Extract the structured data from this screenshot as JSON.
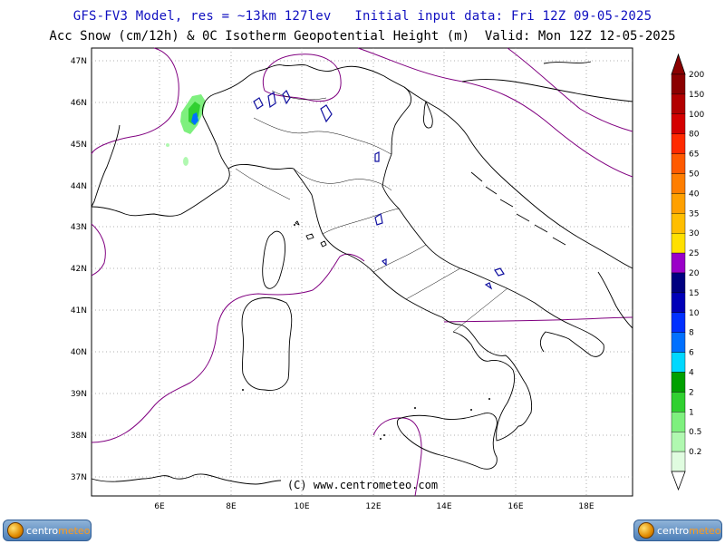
{
  "header": {
    "line1": "GFS-FV3 Model, res = ~13km 127lev   Initial input data: Fri 12Z 09-05-2025",
    "line2": "Acc Snow (cm/12h) & 0C Isotherm Geopotential Height (m)  Valid: Mon 12Z 12-05-2025"
  },
  "map": {
    "lat_labels": [
      "47N",
      "46N",
      "45N",
      "44N",
      "43N",
      "42N",
      "41N",
      "40N",
      "39N",
      "38N",
      "37N"
    ],
    "lon_labels": [
      "6E",
      "8E",
      "10E",
      "12E",
      "14E",
      "16E",
      "18E"
    ],
    "credit": "(C) www.centrometeo.com"
  },
  "legend": {
    "levels": [
      "200",
      "150",
      "100",
      "80",
      "65",
      "50",
      "40",
      "35",
      "30",
      "25",
      "20",
      "15",
      "10",
      "8",
      "6",
      "4",
      "2",
      "1",
      "0.5",
      "0.2"
    ],
    "colors": [
      "#8b0000",
      "#b20000",
      "#d40000",
      "#ff2a00",
      "#ff5a00",
      "#ff7e00",
      "#ffa000",
      "#ffbe00",
      "#ffe000",
      "#9a00c8",
      "#000080",
      "#0000b8",
      "#0030ff",
      "#0070ff",
      "#00d8ff",
      "#00a000",
      "#30d030",
      "#7ef07e",
      "#b0f8b0",
      "#e0fce0"
    ]
  },
  "logo": {
    "brand_a": "centro",
    "brand_b": "meteo"
  }
}
